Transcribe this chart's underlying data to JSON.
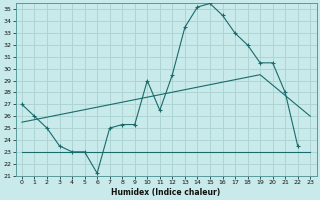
{
  "xlabel": "Humidex (Indice chaleur)",
  "background_color": "#c8eaea",
  "grid_color": "#aed4d4",
  "line_color": "#1a6b6b",
  "xlim": [
    -0.5,
    23.5
  ],
  "ylim": [
    21,
    35.5
  ],
  "xticks": [
    0,
    1,
    2,
    3,
    4,
    5,
    6,
    7,
    8,
    9,
    10,
    11,
    12,
    13,
    14,
    15,
    16,
    17,
    18,
    19,
    20,
    21,
    22,
    23
  ],
  "yticks": [
    21,
    22,
    23,
    24,
    25,
    26,
    27,
    28,
    29,
    30,
    31,
    32,
    33,
    34,
    35
  ],
  "curve1_x": [
    0,
    1,
    2,
    3,
    4,
    5,
    6,
    7,
    8,
    9,
    10,
    11,
    12,
    13,
    14,
    15,
    16,
    17,
    18,
    19,
    20,
    21,
    22
  ],
  "curve1_y": [
    27.0,
    26.0,
    25.0,
    23.5,
    23.0,
    23.0,
    21.2,
    25.0,
    25.3,
    25.3,
    29.0,
    26.5,
    29.5,
    33.5,
    35.2,
    35.5,
    34.5,
    33.0,
    32.0,
    30.5,
    30.5,
    28.0,
    23.5
  ],
  "curve2_x": [
    0,
    23
  ],
  "curve2_y": [
    23.0,
    23.0
  ],
  "curve3_x": [
    0,
    19,
    23
  ],
  "curve3_y": [
    25.5,
    29.5,
    26.0
  ]
}
